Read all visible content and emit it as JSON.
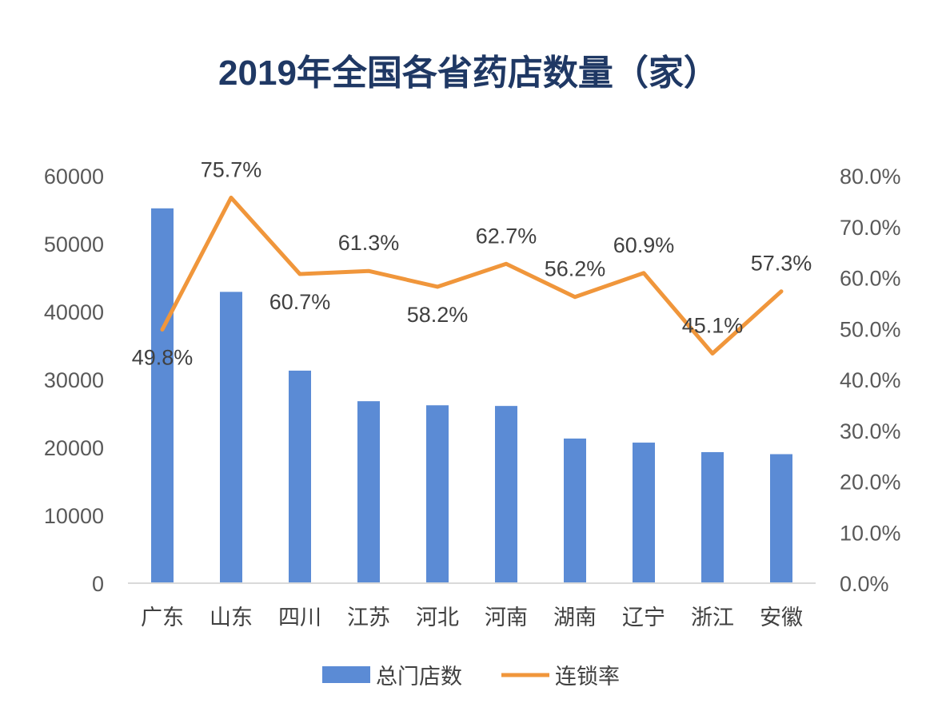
{
  "chart_data": {
    "type": "bar+line",
    "title": "2019年全国各省药店数量（家）",
    "categories": [
      "广东",
      "山东",
      "四川",
      "江苏",
      "河北",
      "河南",
      "湖南",
      "辽宁",
      "浙江",
      "安徽"
    ],
    "series": [
      {
        "name": "总门店数",
        "type": "bar",
        "axis": "left",
        "color": "#5b8bd5",
        "values": [
          55200,
          42900,
          31300,
          26800,
          26200,
          26100,
          21300,
          20700,
          19300,
          19000
        ]
      },
      {
        "name": "连锁率",
        "type": "line",
        "axis": "right",
        "color": "#f0963b",
        "values": [
          49.8,
          75.7,
          60.7,
          61.3,
          58.2,
          62.7,
          56.2,
          60.9,
          45.1,
          57.3
        ],
        "labels": [
          "49.8%",
          "75.7%",
          "60.7%",
          "61.3%",
          "58.2%",
          "62.7%",
          "56.2%",
          "60.9%",
          "45.1%",
          "57.3%"
        ]
      }
    ],
    "left_axis": {
      "min": 0,
      "max": 60000,
      "ticks": [
        0,
        10000,
        20000,
        30000,
        40000,
        50000,
        60000
      ],
      "tick_labels": [
        "0",
        "10000",
        "20000",
        "30000",
        "40000",
        "50000",
        "60000"
      ]
    },
    "right_axis": {
      "min": 0,
      "max": 80,
      "ticks": [
        0,
        10,
        20,
        30,
        40,
        50,
        60,
        70,
        80
      ],
      "tick_labels": [
        "0.0%",
        "10.0%",
        "20.0%",
        "30.0%",
        "40.0%",
        "50.0%",
        "60.0%",
        "70.0%",
        "80.0%"
      ]
    },
    "grid": false,
    "legend_position": "bottom"
  }
}
